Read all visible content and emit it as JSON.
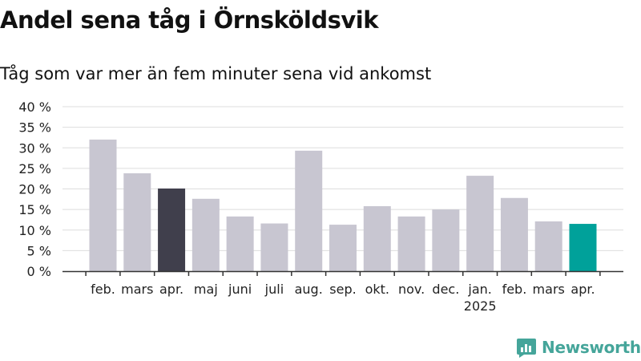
{
  "header": {
    "title": "Andel sena tåg i Örnsköldsvik",
    "subtitle": "Tåg som var mer än fem minuter sena vid ankomst"
  },
  "brand": {
    "name": "Newsworthy",
    "icon": "newsworthy-logo-icon",
    "color": "#45a59a"
  },
  "colors": {
    "bar_default": "#c8c6d1",
    "bar_highlight_dark": "#403f4c",
    "bar_highlight_teal": "#00a19a",
    "gridline": "#dddddd",
    "axis": "#333333"
  },
  "chart_data": {
    "type": "bar",
    "title": "Andel sena tåg i Örnsköldsvik",
    "subtitle": "Tåg som var mer än fem minuter sena vid ankomst",
    "xlabel": "",
    "ylabel": "",
    "ylim": [
      0,
      40
    ],
    "yticks": [
      0,
      5,
      10,
      15,
      20,
      25,
      30,
      35,
      40
    ],
    "ytick_labels": [
      "0 %",
      "5 %",
      "10 %",
      "15 %",
      "20 %",
      "25 %",
      "30 %",
      "35 %",
      "40 %"
    ],
    "grid": true,
    "legend": "none",
    "categories": [
      "feb.",
      "mars",
      "apr.",
      "maj",
      "juni",
      "juli",
      "aug.",
      "sep.",
      "okt.",
      "nov.",
      "dec.",
      "jan.",
      "feb.",
      "mars",
      "apr."
    ],
    "year_labels": {
      "11": "2025"
    },
    "values": [
      32,
      23.8,
      20.1,
      17.6,
      13.3,
      11.6,
      29.3,
      11.3,
      15.8,
      13.3,
      15,
      23.2,
      17.8,
      12.1,
      11.5
    ],
    "highlight": {
      "2": "dark",
      "14": "teal"
    }
  }
}
